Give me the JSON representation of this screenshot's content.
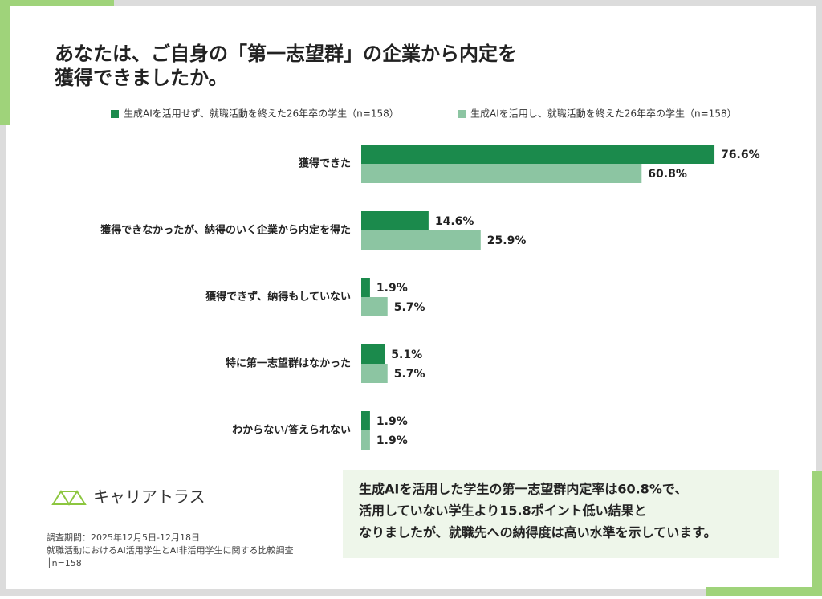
{
  "chart_data": {
    "type": "bar",
    "orientation": "horizontal",
    "title_lines": [
      "あなたは、ご自身の「第一志望群」の企業から内定を",
      "獲得できましたか。"
    ],
    "categories": [
      "獲得できた",
      "獲得できなかったが、納得のいく企業から内定を得た",
      "獲得できず、納得もしていない",
      "特に第一志望群はなかった",
      "わからない/答えられない"
    ],
    "series": [
      {
        "name": "生成AIを活用せず、就職活動を終えた26年卒の学生（n=158）",
        "color": "#1b8a4c",
        "values": [
          76.6,
          14.6,
          1.9,
          5.1,
          1.9
        ],
        "value_labels": [
          "76.6%",
          "14.6%",
          "1.9%",
          "5.1%",
          "1.9%"
        ]
      },
      {
        "name": "生成AIを活用し、就職活動を終えた26年卒の学生（n=158）",
        "color": "#8cc5a2",
        "values": [
          60.8,
          25.9,
          5.7,
          5.7,
          1.9
        ],
        "value_labels": [
          "60.8%",
          "25.9%",
          "5.7%",
          "5.7%",
          "1.9%"
        ]
      }
    ],
    "callout_lines": [
      "生成AIを活用した学生の第一志望群内定率は60.8%で、",
      "活用していない学生より15.8ポイント低い結果と",
      "なりましたが、就職先への納得度は高い水準を示しています。"
    ],
    "logo_text": "キャリアトラス",
    "footnote_lines": [
      "調査期間：2025年12月5日-12月18日",
      "就職活動におけるAI活用学生とAI非活用学生に関する比較調査",
      "│n=158"
    ]
  }
}
